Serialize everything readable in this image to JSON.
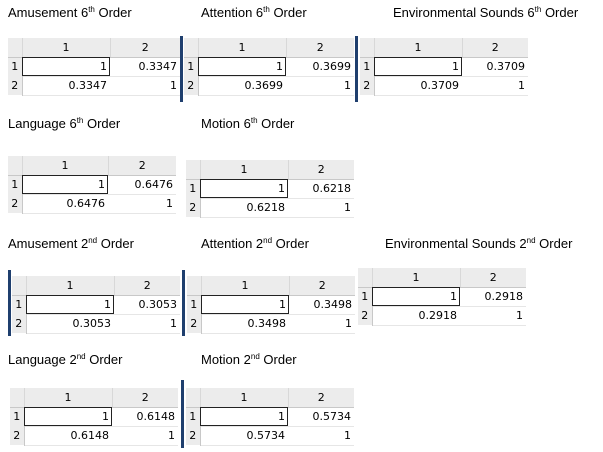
{
  "panels": [
    {
      "title_pre": "Amusement 6",
      "sup": "th",
      "title_post": " Order",
      "col1": "1",
      "col2": "2",
      "r1": "1",
      "r2": "2",
      "v11": "1",
      "v12": "0.3347",
      "v21": "0.3347",
      "v22": "1"
    },
    {
      "title_pre": "Attention 6",
      "sup": "th",
      "title_post": " Order",
      "col1": "1",
      "col2": "2",
      "r1": "1",
      "r2": "2",
      "v11": "1",
      "v12": "0.3699",
      "v21": "0.3699",
      "v22": "1"
    },
    {
      "title_pre": "Environmental Sounds 6",
      "sup": "th",
      "title_post": " Order",
      "col1": "1",
      "col2": "2",
      "r1": "1",
      "r2": "2",
      "v11": "1",
      "v12": "0.3709",
      "v21": "0.3709",
      "v22": "1"
    },
    {
      "title_pre": "Language 6",
      "sup": "th",
      "title_post": " Order",
      "col1": "1",
      "col2": "2",
      "r1": "1",
      "r2": "2",
      "v11": "1",
      "v12": "0.6476",
      "v21": "0.6476",
      "v22": "1"
    },
    {
      "title_pre": "Motion 6",
      "sup": "th",
      "title_post": " Order",
      "col1": "1",
      "col2": "2",
      "r1": "1",
      "r2": "2",
      "v11": "1",
      "v12": "0.6218",
      "v21": "0.6218",
      "v22": "1"
    },
    {
      "title_pre": "Amusement 2",
      "sup": "nd",
      "title_post": " Order",
      "col1": "1",
      "col2": "2",
      "r1": "1",
      "r2": "2",
      "v11": "1",
      "v12": "0.3053",
      "v21": "0.3053",
      "v22": "1"
    },
    {
      "title_pre": "Attention 2",
      "sup": "nd",
      "title_post": " Order",
      "col1": "1",
      "col2": "2",
      "r1": "1",
      "r2": "2",
      "v11": "1",
      "v12": "0.3498",
      "v21": "0.3498",
      "v22": "1"
    },
    {
      "title_pre": "Environmental Sounds 2",
      "sup": "nd",
      "title_post": " Order",
      "col1": "1",
      "col2": "2",
      "r1": "1",
      "r2": "2",
      "v11": "1",
      "v12": "0.2918",
      "v21": "0.2918",
      "v22": "1"
    },
    {
      "title_pre": "Language 2",
      "sup": "nd",
      "title_post": " Order",
      "col1": "1",
      "col2": "2",
      "r1": "1",
      "r2": "2",
      "v11": "1",
      "v12": "0.6148",
      "v21": "0.6148",
      "v22": "1"
    },
    {
      "title_pre": "Motion 2",
      "sup": "nd",
      "title_post": " Order",
      "col1": "1",
      "col2": "2",
      "r1": "1",
      "r2": "2",
      "v11": "1",
      "v12": "0.5734",
      "v21": "0.5734",
      "v22": "1"
    }
  ]
}
